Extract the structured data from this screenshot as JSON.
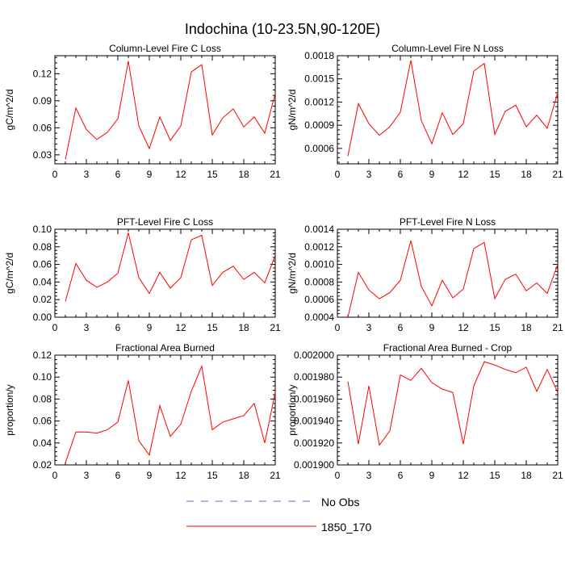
{
  "figure_title": "Indochina (10-23.5N,90-120E)",
  "chart_data": [
    {
      "type": "line",
      "title": "Column-Level Fire C Loss",
      "ylabel": "gC/m^2/d",
      "xlim": [
        0,
        21
      ],
      "ylim": [
        0.02,
        0.14
      ],
      "xticks": [
        0,
        3,
        6,
        9,
        12,
        15,
        18,
        21
      ],
      "xtick_labels": [
        "0",
        "3",
        "6",
        "9",
        "12",
        "15",
        "18",
        "21"
      ],
      "yticks": [
        0.03,
        0.06,
        0.09,
        0.12
      ],
      "ytick_labels": [
        "0.03",
        "0.06",
        "0.09",
        "0.12"
      ],
      "series": [
        {
          "name": "1850_170",
          "color": "#ff0000",
          "x": [
            1,
            2,
            3,
            4,
            5,
            6,
            7,
            8,
            9,
            10,
            11,
            12,
            13,
            14,
            15,
            16,
            17,
            18,
            19,
            20,
            21
          ],
          "y": [
            0.025,
            0.082,
            0.058,
            0.047,
            0.055,
            0.07,
            0.134,
            0.062,
            0.037,
            0.072,
            0.046,
            0.062,
            0.122,
            0.13,
            0.052,
            0.071,
            0.081,
            0.061,
            0.072,
            0.054,
            0.098
          ]
        }
      ]
    },
    {
      "type": "line",
      "title": "Column-Level Fire N Loss",
      "ylabel": "gN/m^2/d",
      "xlim": [
        0,
        21
      ],
      "ylim": [
        0.0004,
        0.0018
      ],
      "xticks": [
        0,
        3,
        6,
        9,
        12,
        15,
        18,
        21
      ],
      "xtick_labels": [
        "0",
        "3",
        "6",
        "9",
        "12",
        "15",
        "18",
        "21"
      ],
      "yticks": [
        0.0006,
        0.0009,
        0.0012,
        0.0015,
        0.0018
      ],
      "ytick_labels": [
        "0.0006",
        "0.0009",
        "0.0012",
        "0.0015",
        "0.0018"
      ],
      "series": [
        {
          "name": "1850_170",
          "color": "#ff0000",
          "x": [
            1,
            2,
            3,
            4,
            5,
            6,
            7,
            8,
            9,
            10,
            11,
            12,
            13,
            14,
            15,
            16,
            17,
            18,
            19,
            20,
            21
          ],
          "y": [
            0.0005,
            0.00118,
            0.00092,
            0.00077,
            0.00088,
            0.00107,
            0.00174,
            0.00096,
            0.00066,
            0.00106,
            0.00078,
            0.00092,
            0.0016,
            0.0017,
            0.00078,
            0.00108,
            0.00116,
            0.00088,
            0.00103,
            0.00086,
            0.00132
          ]
        }
      ]
    },
    {
      "type": "line",
      "title": "PFT-Level Fire C Loss",
      "ylabel": "gC/m^2/d",
      "xlim": [
        0,
        21
      ],
      "ylim": [
        0.0,
        0.1
      ],
      "xticks": [
        0,
        3,
        6,
        9,
        12,
        15,
        18,
        21
      ],
      "xtick_labels": [
        "0",
        "3",
        "6",
        "9",
        "12",
        "15",
        "18",
        "21"
      ],
      "yticks": [
        0.0,
        0.02,
        0.04,
        0.06,
        0.08,
        0.1
      ],
      "ytick_labels": [
        "0.00",
        "0.02",
        "0.04",
        "0.06",
        "0.08",
        "0.10"
      ],
      "series": [
        {
          "name": "1850_170",
          "color": "#ff0000",
          "x": [
            1,
            2,
            3,
            4,
            5,
            6,
            7,
            8,
            9,
            10,
            11,
            12,
            13,
            14,
            15,
            16,
            17,
            18,
            19,
            20,
            21
          ],
          "y": [
            0.018,
            0.061,
            0.042,
            0.034,
            0.04,
            0.05,
            0.096,
            0.045,
            0.027,
            0.051,
            0.033,
            0.045,
            0.088,
            0.093,
            0.036,
            0.051,
            0.058,
            0.043,
            0.051,
            0.039,
            0.07
          ]
        }
      ]
    },
    {
      "type": "line",
      "title": "PFT-Level Fire N Loss",
      "ylabel": "gN/m^2/d",
      "xlim": [
        0,
        21
      ],
      "ylim": [
        0.0004,
        0.0014
      ],
      "xticks": [
        0,
        3,
        6,
        9,
        12,
        15,
        18,
        21
      ],
      "xtick_labels": [
        "0",
        "3",
        "6",
        "9",
        "12",
        "15",
        "18",
        "21"
      ],
      "yticks": [
        0.0004,
        0.0006,
        0.0008,
        0.001,
        0.0012,
        0.0014
      ],
      "ytick_labels": [
        "0.0004",
        "0.0006",
        "0.0008",
        "0.0010",
        "0.0012",
        "0.0014"
      ],
      "series": [
        {
          "name": "1850_170",
          "color": "#ff0000",
          "x": [
            1,
            2,
            3,
            4,
            5,
            6,
            7,
            8,
            9,
            10,
            11,
            12,
            13,
            14,
            15,
            16,
            17,
            18,
            19,
            20,
            21
          ],
          "y": [
            0.0004,
            0.00091,
            0.00071,
            0.00061,
            0.00068,
            0.00082,
            0.00127,
            0.00075,
            0.00053,
            0.00082,
            0.00062,
            0.00072,
            0.00118,
            0.00125,
            0.00061,
            0.00083,
            0.00089,
            0.0007,
            0.00079,
            0.00067,
            0.001
          ]
        }
      ]
    },
    {
      "type": "line",
      "title": "Fractional Area Burned",
      "ylabel": "proportion/y",
      "xlim": [
        0,
        21
      ],
      "ylim": [
        0.02,
        0.12
      ],
      "xticks": [
        0,
        3,
        6,
        9,
        12,
        15,
        18,
        21
      ],
      "xtick_labels": [
        "0",
        "3",
        "6",
        "9",
        "12",
        "15",
        "18",
        "21"
      ],
      "yticks": [
        0.02,
        0.04,
        0.06,
        0.08,
        0.1,
        0.12
      ],
      "ytick_labels": [
        "0.02",
        "0.04",
        "0.06",
        "0.08",
        "0.10",
        "0.12"
      ],
      "series": [
        {
          "name": "1850_170",
          "color": "#ff0000",
          "x": [
            1,
            2,
            3,
            4,
            5,
            6,
            7,
            8,
            9,
            10,
            11,
            12,
            13,
            14,
            15,
            16,
            17,
            18,
            19,
            20,
            21
          ],
          "y": [
            0.022,
            0.05,
            0.05,
            0.049,
            0.052,
            0.059,
            0.097,
            0.042,
            0.029,
            0.074,
            0.046,
            0.057,
            0.087,
            0.11,
            0.052,
            0.059,
            0.062,
            0.065,
            0.076,
            0.04,
            0.086
          ]
        }
      ]
    },
    {
      "type": "line",
      "title": "Fractional Area Burned - Crop",
      "ylabel": "proportion/y",
      "xlim": [
        0,
        21
      ],
      "ylim": [
        0.0019,
        0.002
      ],
      "xticks": [
        0,
        3,
        6,
        9,
        12,
        15,
        18,
        21
      ],
      "xtick_labels": [
        "0",
        "3",
        "6",
        "9",
        "12",
        "15",
        "18",
        "21"
      ],
      "yticks": [
        0.0019,
        0.00192,
        0.00194,
        0.00196,
        0.00198,
        0.002
      ],
      "ytick_labels": [
        "0.001900",
        "0.001920",
        "0.001940",
        "0.001960",
        "0.001980",
        "0.002000"
      ],
      "series": [
        {
          "name": "1850_170",
          "color": "#ff0000",
          "x": [
            1,
            2,
            3,
            4,
            5,
            6,
            7,
            8,
            9,
            10,
            11,
            12,
            13,
            14,
            15,
            16,
            17,
            18,
            19,
            20,
            21
          ],
          "y": [
            0.001976,
            0.001919,
            0.001972,
            0.001918,
            0.001931,
            0.001982,
            0.001977,
            0.001988,
            0.001975,
            0.001969,
            0.001966,
            0.001919,
            0.001972,
            0.001994,
            0.001991,
            0.001987,
            0.001984,
            0.001989,
            0.001967,
            0.001987,
            0.001966
          ]
        }
      ]
    }
  ],
  "legend": {
    "placement": "bottom-center",
    "items": [
      {
        "label": "No Obs",
        "color": "#6a6acd",
        "style": "dashed"
      },
      {
        "label": "1850_170",
        "color": "#ff0000",
        "style": "solid"
      }
    ]
  }
}
